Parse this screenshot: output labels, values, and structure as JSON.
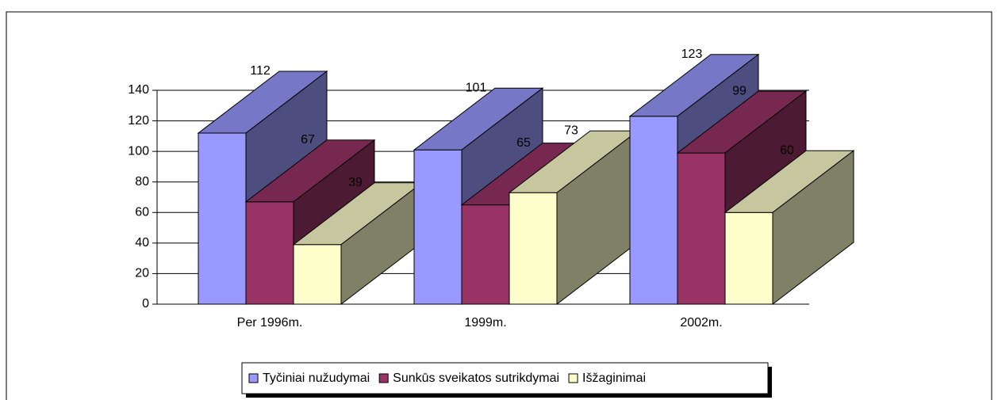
{
  "chart_data": {
    "type": "bar3d",
    "categories": [
      "Per 1996m.",
      "1999m.",
      "2002m."
    ],
    "series": [
      {
        "name": "Tyčiniai nužudymai",
        "color": "#9999ff",
        "values": [
          112,
          101,
          123
        ]
      },
      {
        "name": "Sunkūs sveikatos sutrikdymai",
        "color": "#993366",
        "values": [
          67,
          65,
          99
        ]
      },
      {
        "name": "Išžaginimai",
        "color": "#ffffcc",
        "values": [
          39,
          73,
          60
        ]
      }
    ],
    "ylim": [
      0,
      140
    ],
    "yticks": [
      0,
      20,
      40,
      60,
      80,
      100,
      120,
      140
    ],
    "grid": true,
    "legend": "bottom"
  }
}
